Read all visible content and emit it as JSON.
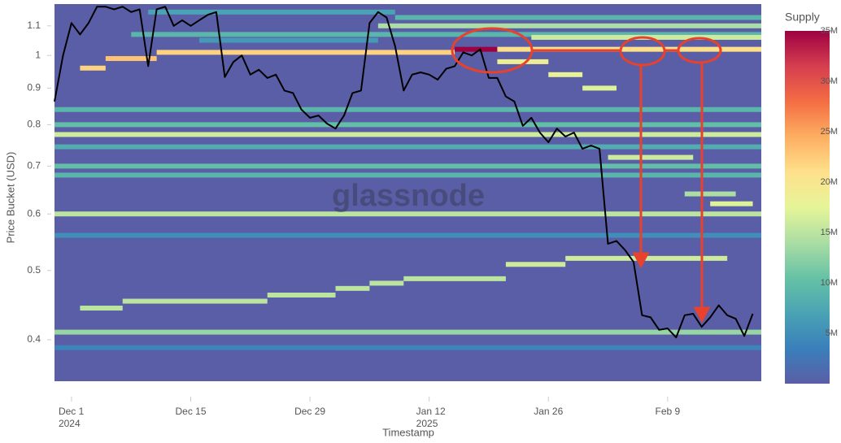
{
  "chart_data": {
    "type": "heatmap",
    "y_label": "Price Bucket (USD)",
    "x_label": "Timestamp",
    "colorbar_title": "Supply",
    "watermark": "glassnode",
    "log_y": true,
    "ylim": [
      0.35,
      1.18
    ],
    "yticks": [
      0.4,
      0.5,
      0.6,
      0.7,
      0.8,
      0.9,
      1,
      1.1
    ],
    "xlim": [
      "2024-11-29",
      "2025-02-20"
    ],
    "xticks": [
      {
        "value": "2024-12-01",
        "label": "Dec 1\n2024"
      },
      {
        "value": "2024-12-15",
        "label": "Dec 15"
      },
      {
        "value": "2024-12-29",
        "label": "Dec 29"
      },
      {
        "value": "2025-01-12",
        "label": "Jan 12\n2025"
      },
      {
        "value": "2025-01-26",
        "label": "Jan 26"
      },
      {
        "value": "2025-02-09",
        "label": "Feb 9"
      }
    ],
    "zlim": [
      0,
      35000000
    ],
    "colorbar_ticks": [
      {
        "value": 5000000,
        "label": "5M"
      },
      {
        "value": 10000000,
        "label": "10M"
      },
      {
        "value": 15000000,
        "label": "15M"
      },
      {
        "value": 20000000,
        "label": "20M"
      },
      {
        "value": 25000000,
        "label": "25M"
      },
      {
        "value": 30000000,
        "label": "30M"
      },
      {
        "value": 35000000,
        "label": "35M"
      }
    ],
    "colorscale": [
      "#5a5ea6",
      "#3a7fbb",
      "#4aa3b4",
      "#66c2a5",
      "#abdda4",
      "#e6f598",
      "#fee08b",
      "#fdae61",
      "#f46d43",
      "#d53e4f",
      "#9e0142"
    ],
    "bands": [
      {
        "price": 1.15,
        "x": [
          "2024-12-10",
          "2025-01-08"
        ],
        "supply": 7000000
      },
      {
        "price": 1.13,
        "x": [
          "2025-01-08",
          "2025-02-20"
        ],
        "supply": 9000000
      },
      {
        "price": 1.1,
        "x": [
          "2025-01-06",
          "2025-02-20"
        ],
        "supply": 14000000
      },
      {
        "price": 1.07,
        "x": [
          "2024-12-08",
          "2025-02-20"
        ],
        "supply": 9000000
      },
      {
        "price": 1.06,
        "x": [
          "2025-01-24",
          "2025-02-20"
        ],
        "supply": 16000000
      },
      {
        "price": 1.05,
        "x": [
          "2024-12-16",
          "2025-01-06"
        ],
        "supply": 6000000
      },
      {
        "price": 1.01,
        "x": [
          "2024-12-11",
          "2025-01-15"
        ],
        "supply": 22000000
      },
      {
        "price": 1.02,
        "x": [
          "2025-01-15",
          "2025-01-20"
        ],
        "supply": 35000000
      },
      {
        "price": 1.02,
        "x": [
          "2025-01-20",
          "2025-02-20"
        ],
        "supply": 21000000
      },
      {
        "price": 0.99,
        "x": [
          "2024-12-05",
          "2024-12-11"
        ],
        "supply": 23000000
      },
      {
        "price": 0.96,
        "x": [
          "2024-12-02",
          "2024-12-05"
        ],
        "supply": 22000000
      },
      {
        "price": 0.98,
        "x": [
          "2025-01-20",
          "2025-01-26"
        ],
        "supply": 19000000
      },
      {
        "price": 0.94,
        "x": [
          "2025-01-26",
          "2025-01-30"
        ],
        "supply": 18000000
      },
      {
        "price": 0.9,
        "x": [
          "2025-01-30",
          "2025-02-03"
        ],
        "supply": 17000000
      },
      {
        "price": 0.84,
        "x": [
          "2024-11-29",
          "2025-02-20"
        ],
        "supply": 9000000
      },
      {
        "price": 0.8,
        "x": [
          "2024-11-29",
          "2025-02-20"
        ],
        "supply": 10000000
      },
      {
        "price": 0.775,
        "x": [
          "2024-11-29",
          "2025-02-20"
        ],
        "supply": 16000000
      },
      {
        "price": 0.745,
        "x": [
          "2024-11-29",
          "2025-02-20"
        ],
        "supply": 8000000
      },
      {
        "price": 0.72,
        "x": [
          "2025-02-02",
          "2025-02-12"
        ],
        "supply": 16000000
      },
      {
        "price": 0.7,
        "x": [
          "2024-11-29",
          "2025-02-20"
        ],
        "supply": 10000000
      },
      {
        "price": 0.68,
        "x": [
          "2024-11-29",
          "2025-02-20"
        ],
        "supply": 9000000
      },
      {
        "price": 0.64,
        "x": [
          "2025-02-11",
          "2025-02-17"
        ],
        "supply": 14000000
      },
      {
        "price": 0.62,
        "x": [
          "2025-02-14",
          "2025-02-19"
        ],
        "supply": 17000000
      },
      {
        "price": 0.6,
        "x": [
          "2024-11-29",
          "2025-02-20"
        ],
        "supply": 15000000
      },
      {
        "price": 0.56,
        "x": [
          "2024-11-29",
          "2025-02-20"
        ],
        "supply": 5000000
      },
      {
        "price": 0.52,
        "x": [
          "2025-01-28",
          "2025-02-16"
        ],
        "supply": 16000000
      },
      {
        "price": 0.51,
        "x": [
          "2025-01-21",
          "2025-01-28"
        ],
        "supply": 16000000
      },
      {
        "price": 0.487,
        "x": [
          "2025-01-09",
          "2025-01-21"
        ],
        "supply": 15000000
      },
      {
        "price": 0.48,
        "x": [
          "2025-01-05",
          "2025-01-09"
        ],
        "supply": 15000000
      },
      {
        "price": 0.472,
        "x": [
          "2025-01-01",
          "2025-01-05"
        ],
        "supply": 15000000
      },
      {
        "price": 0.462,
        "x": [
          "2024-12-24",
          "2025-01-01"
        ],
        "supply": 15000000
      },
      {
        "price": 0.453,
        "x": [
          "2024-12-07",
          "2024-12-24"
        ],
        "supply": 15000000
      },
      {
        "price": 0.443,
        "x": [
          "2024-12-02",
          "2024-12-07"
        ],
        "supply": 15000000
      },
      {
        "price": 0.41,
        "x": [
          "2024-11-29",
          "2025-02-20"
        ],
        "supply": 13000000
      },
      {
        "price": 0.39,
        "x": [
          "2024-11-29",
          "2025-02-20"
        ],
        "supply": 4000000
      }
    ],
    "price_line": {
      "color": "#000000",
      "x": [
        "2024-11-29",
        "2024-11-30",
        "2024-12-01",
        "2024-12-02",
        "2024-12-03",
        "2024-12-04",
        "2024-12-05",
        "2024-12-06",
        "2024-12-07",
        "2024-12-08",
        "2024-12-09",
        "2024-12-10",
        "2024-12-11",
        "2024-12-12",
        "2024-12-13",
        "2024-12-14",
        "2024-12-15",
        "2024-12-16",
        "2024-12-17",
        "2024-12-18",
        "2024-12-19",
        "2024-12-20",
        "2024-12-21",
        "2024-12-22",
        "2024-12-23",
        "2024-12-24",
        "2024-12-25",
        "2024-12-26",
        "2024-12-27",
        "2024-12-28",
        "2024-12-29",
        "2024-12-30",
        "2024-12-31",
        "2025-01-01",
        "2025-01-02",
        "2025-01-03",
        "2025-01-04",
        "2025-01-05",
        "2025-01-06",
        "2025-01-07",
        "2025-01-08",
        "2025-01-09",
        "2025-01-10",
        "2025-01-11",
        "2025-01-12",
        "2025-01-13",
        "2025-01-14",
        "2025-01-15",
        "2025-01-16",
        "2025-01-17",
        "2025-01-18",
        "2025-01-19",
        "2025-01-20",
        "2025-01-21",
        "2025-01-22",
        "2025-01-23",
        "2025-01-24",
        "2025-01-25",
        "2025-01-26",
        "2025-01-27",
        "2025-01-28",
        "2025-01-29",
        "2025-01-30",
        "2025-01-31",
        "2025-02-01",
        "2025-02-02",
        "2025-02-03",
        "2025-02-04",
        "2025-02-05",
        "2025-02-06",
        "2025-02-07",
        "2025-02-08",
        "2025-02-09",
        "2025-02-10",
        "2025-02-11",
        "2025-02-12",
        "2025-02-13",
        "2025-02-14",
        "2025-02-15",
        "2025-02-16",
        "2025-02-17",
        "2025-02-18",
        "2025-02-19"
      ],
      "values": [
        0.862,
        1.0,
        1.11,
        1.07,
        1.11,
        1.17,
        1.17,
        1.16,
        1.17,
        1.15,
        1.16,
        0.966,
        1.16,
        1.17,
        1.1,
        1.12,
        1.1,
        1.12,
        1.14,
        1.15,
        0.933,
        0.979,
        1.0,
        0.94,
        0.955,
        0.93,
        0.94,
        0.893,
        0.886,
        0.84,
        0.818,
        0.824,
        0.803,
        0.79,
        0.824,
        0.886,
        0.893,
        1.11,
        1.15,
        1.13,
        1.03,
        0.893,
        0.94,
        0.947,
        0.94,
        0.925,
        0.958,
        0.966,
        1.01,
        1.0,
        1.02,
        0.93,
        0.93,
        0.876,
        0.862,
        0.797,
        0.818,
        0.78,
        0.756,
        0.79,
        0.77,
        0.78,
        0.74,
        0.748,
        0.74,
        0.545,
        0.55,
        0.534,
        0.514,
        0.433,
        0.43,
        0.413,
        0.415,
        0.403,
        0.433,
        0.435,
        0.417,
        0.43,
        0.447,
        0.433,
        0.428,
        0.405,
        0.435
      ]
    }
  }
}
